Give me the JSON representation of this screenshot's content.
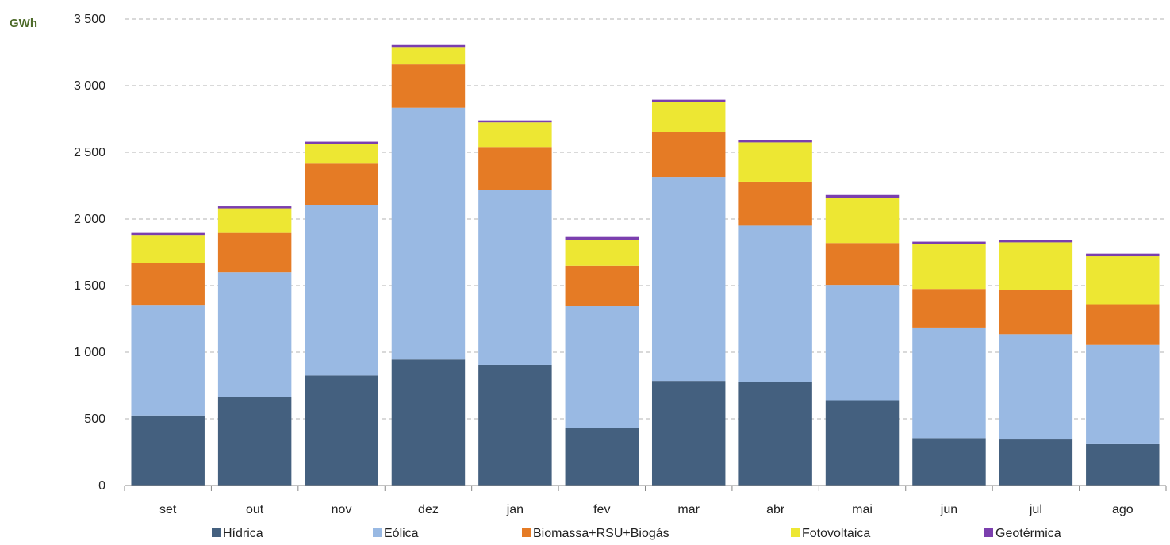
{
  "chart_data": {
    "type": "bar",
    "stacked": true,
    "unit_label": "GWh",
    "categories": [
      "set",
      "out",
      "nov",
      "dez",
      "jan",
      "fev",
      "mar",
      "abr",
      "mai",
      "jun",
      "jul",
      "ago"
    ],
    "y_ticks": [
      {
        "value": 0,
        "label": "0"
      },
      {
        "value": 500,
        "label": "500"
      },
      {
        "value": 1000,
        "label": "1 000"
      },
      {
        "value": 1500,
        "label": "1 500"
      },
      {
        "value": 2000,
        "label": "2 000"
      },
      {
        "value": 2500,
        "label": "2 500"
      },
      {
        "value": 3000,
        "label": "3 000"
      },
      {
        "value": 3500,
        "label": "3 500"
      }
    ],
    "ylim": [
      0,
      3500
    ],
    "grid": true,
    "legend_position": "bottom",
    "series": [
      {
        "name": "Hídrica",
        "color": "#44607f",
        "values": [
          525,
          665,
          825,
          945,
          905,
          430,
          785,
          775,
          640,
          355,
          345,
          310
        ]
      },
      {
        "name": "Eólica",
        "color": "#99b9e3",
        "values": [
          825,
          935,
          1280,
          1890,
          1315,
          915,
          1530,
          1175,
          865,
          830,
          790,
          745
        ]
      },
      {
        "name": "Biomassa+RSU+Biogás",
        "color": "#e57b25",
        "values": [
          320,
          295,
          310,
          325,
          320,
          305,
          335,
          330,
          315,
          290,
          330,
          305
        ]
      },
      {
        "name": "Fotovoltaica",
        "color": "#ede733",
        "values": [
          210,
          185,
          150,
          130,
          185,
          195,
          225,
          295,
          340,
          335,
          360,
          360
        ]
      },
      {
        "name": "Geotérmica",
        "color": "#7b3fae",
        "values": [
          15,
          15,
          15,
          15,
          15,
          20,
          20,
          20,
          20,
          20,
          20,
          20
        ]
      }
    ],
    "colors": {
      "grid": "#b3b3b3",
      "axis": "#888888",
      "unit_label": "#4e6b2a",
      "text": "#222222"
    }
  }
}
